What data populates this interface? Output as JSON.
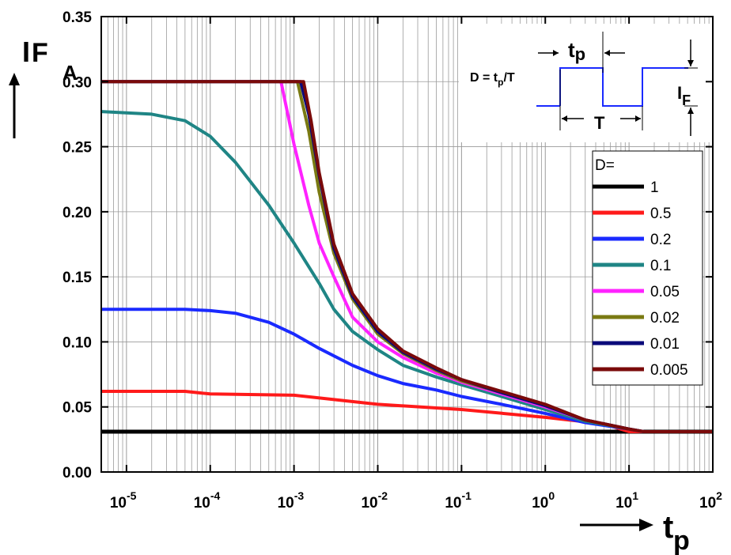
{
  "chart_data": {
    "type": "line",
    "x_scale": "log",
    "xlim": [
      5e-06,
      100
    ],
    "ylim": [
      0,
      0.35
    ],
    "y_ticks": [
      "0.00",
      "0.05",
      "0.10",
      "0.15",
      "0.20",
      "0.25",
      "0.30",
      "0.35"
    ],
    "x_ticks": [
      {
        "base": "10",
        "exp": "-5",
        "value": 1e-05
      },
      {
        "base": "10",
        "exp": "-4",
        "value": 0.0001
      },
      {
        "base": "10",
        "exp": "-3",
        "value": 0.001
      },
      {
        "base": "10",
        "exp": "-2",
        "value": 0.01
      },
      {
        "base": "10",
        "exp": "-1",
        "value": 0.1
      },
      {
        "base": "10",
        "exp": "0",
        "value": 1
      },
      {
        "base": "10",
        "exp": "1",
        "value": 10
      },
      {
        "base": "10",
        "exp": "2",
        "value": 100
      }
    ],
    "ylabel": {
      "main": "I",
      "sub": "F",
      "unit": "A"
    },
    "xlabel": {
      "main": "t",
      "sub": "p"
    },
    "grid": true,
    "legend": {
      "title": "D=",
      "placement": "right",
      "entries": [
        {
          "label": "1",
          "color": "#000000"
        },
        {
          "label": "0.5",
          "color": "#ff1a1a"
        },
        {
          "label": "0.2",
          "color": "#1a2aff"
        },
        {
          "label": "0.1",
          "color": "#1f8585"
        },
        {
          "label": "0.05",
          "color": "#ff22ff"
        },
        {
          "label": "0.02",
          "color": "#7a7a12"
        },
        {
          "label": "0.01",
          "color": "#0a0a7a"
        },
        {
          "label": "0.005",
          "color": "#7a0a0a"
        }
      ]
    },
    "series": [
      {
        "label": "1",
        "color": "#000000",
        "x": [
          5e-06,
          100
        ],
        "y": [
          0.031,
          0.031
        ]
      },
      {
        "label": "0.5",
        "color": "#ff1a1a",
        "x": [
          5e-06,
          5e-05,
          0.0001,
          0.001,
          0.01,
          0.1,
          1,
          5,
          10,
          100
        ],
        "y": [
          0.062,
          0.062,
          0.06,
          0.059,
          0.052,
          0.048,
          0.042,
          0.037,
          0.031,
          0.031
        ]
      },
      {
        "label": "0.2",
        "color": "#1a2aff",
        "x": [
          5e-06,
          5e-05,
          0.0001,
          0.0002,
          0.0005,
          0.001,
          0.002,
          0.005,
          0.01,
          0.02,
          0.05,
          0.1,
          0.3,
          1,
          3,
          10,
          15,
          100
        ],
        "y": [
          0.125,
          0.125,
          0.124,
          0.122,
          0.115,
          0.106,
          0.095,
          0.082,
          0.074,
          0.068,
          0.063,
          0.058,
          0.052,
          0.045,
          0.038,
          0.033,
          0.031,
          0.031
        ]
      },
      {
        "label": "0.1",
        "color": "#1f8585",
        "x": [
          5e-06,
          2e-05,
          5e-05,
          0.0001,
          0.0002,
          0.0005,
          0.001,
          0.002,
          0.003,
          0.005,
          0.01,
          0.02,
          0.05,
          0.1,
          0.3,
          1,
          3,
          10,
          15,
          100
        ],
        "y": [
          0.277,
          0.275,
          0.27,
          0.258,
          0.238,
          0.205,
          0.176,
          0.145,
          0.125,
          0.108,
          0.094,
          0.082,
          0.073,
          0.067,
          0.058,
          0.048,
          0.039,
          0.033,
          0.031,
          0.031
        ]
      },
      {
        "label": "0.05",
        "color": "#ff22ff",
        "x": [
          5e-06,
          0.0007,
          0.001,
          0.0015,
          0.002,
          0.003,
          0.005,
          0.01,
          0.02,
          0.05,
          0.1,
          0.3,
          1,
          3,
          10,
          15,
          100
        ],
        "y": [
          0.3,
          0.3,
          0.252,
          0.205,
          0.176,
          0.15,
          0.119,
          0.1,
          0.088,
          0.076,
          0.069,
          0.06,
          0.05,
          0.04,
          0.033,
          0.031,
          0.031
        ]
      },
      {
        "label": "0.02",
        "color": "#7a7a12",
        "x": [
          5e-06,
          0.0011,
          0.0015,
          0.002,
          0.003,
          0.005,
          0.01,
          0.02,
          0.05,
          0.1,
          0.3,
          1,
          3,
          10,
          15,
          100
        ],
        "y": [
          0.3,
          0.3,
          0.262,
          0.215,
          0.168,
          0.133,
          0.106,
          0.091,
          0.078,
          0.07,
          0.061,
          0.051,
          0.04,
          0.033,
          0.031,
          0.031
        ]
      },
      {
        "label": "0.01",
        "color": "#0a0a7a",
        "x": [
          5e-06,
          0.0012,
          0.0015,
          0.002,
          0.003,
          0.005,
          0.01,
          0.02,
          0.05,
          0.1,
          0.3,
          1,
          3,
          10,
          15,
          100
        ],
        "y": [
          0.3,
          0.3,
          0.275,
          0.228,
          0.172,
          0.135,
          0.108,
          0.092,
          0.079,
          0.071,
          0.061,
          0.051,
          0.04,
          0.033,
          0.031,
          0.031
        ]
      },
      {
        "label": "0.005",
        "color": "#7a0a0a",
        "x": [
          5e-06,
          0.0013,
          0.0016,
          0.002,
          0.003,
          0.005,
          0.01,
          0.02,
          0.05,
          0.1,
          0.3,
          1,
          3,
          10,
          15,
          100
        ],
        "y": [
          0.3,
          0.3,
          0.27,
          0.23,
          0.175,
          0.137,
          0.11,
          0.093,
          0.08,
          0.071,
          0.062,
          0.052,
          0.04,
          0.033,
          0.031,
          0.031
        ]
      }
    ],
    "inset": {
      "formula": {
        "lhs": "D = t",
        "sub": "p",
        "rest": "/T"
      },
      "tp_label": {
        "main": "t",
        "sub": "p"
      },
      "T_label": "T",
      "IF_label": {
        "main": "I",
        "sub": "F"
      }
    }
  }
}
